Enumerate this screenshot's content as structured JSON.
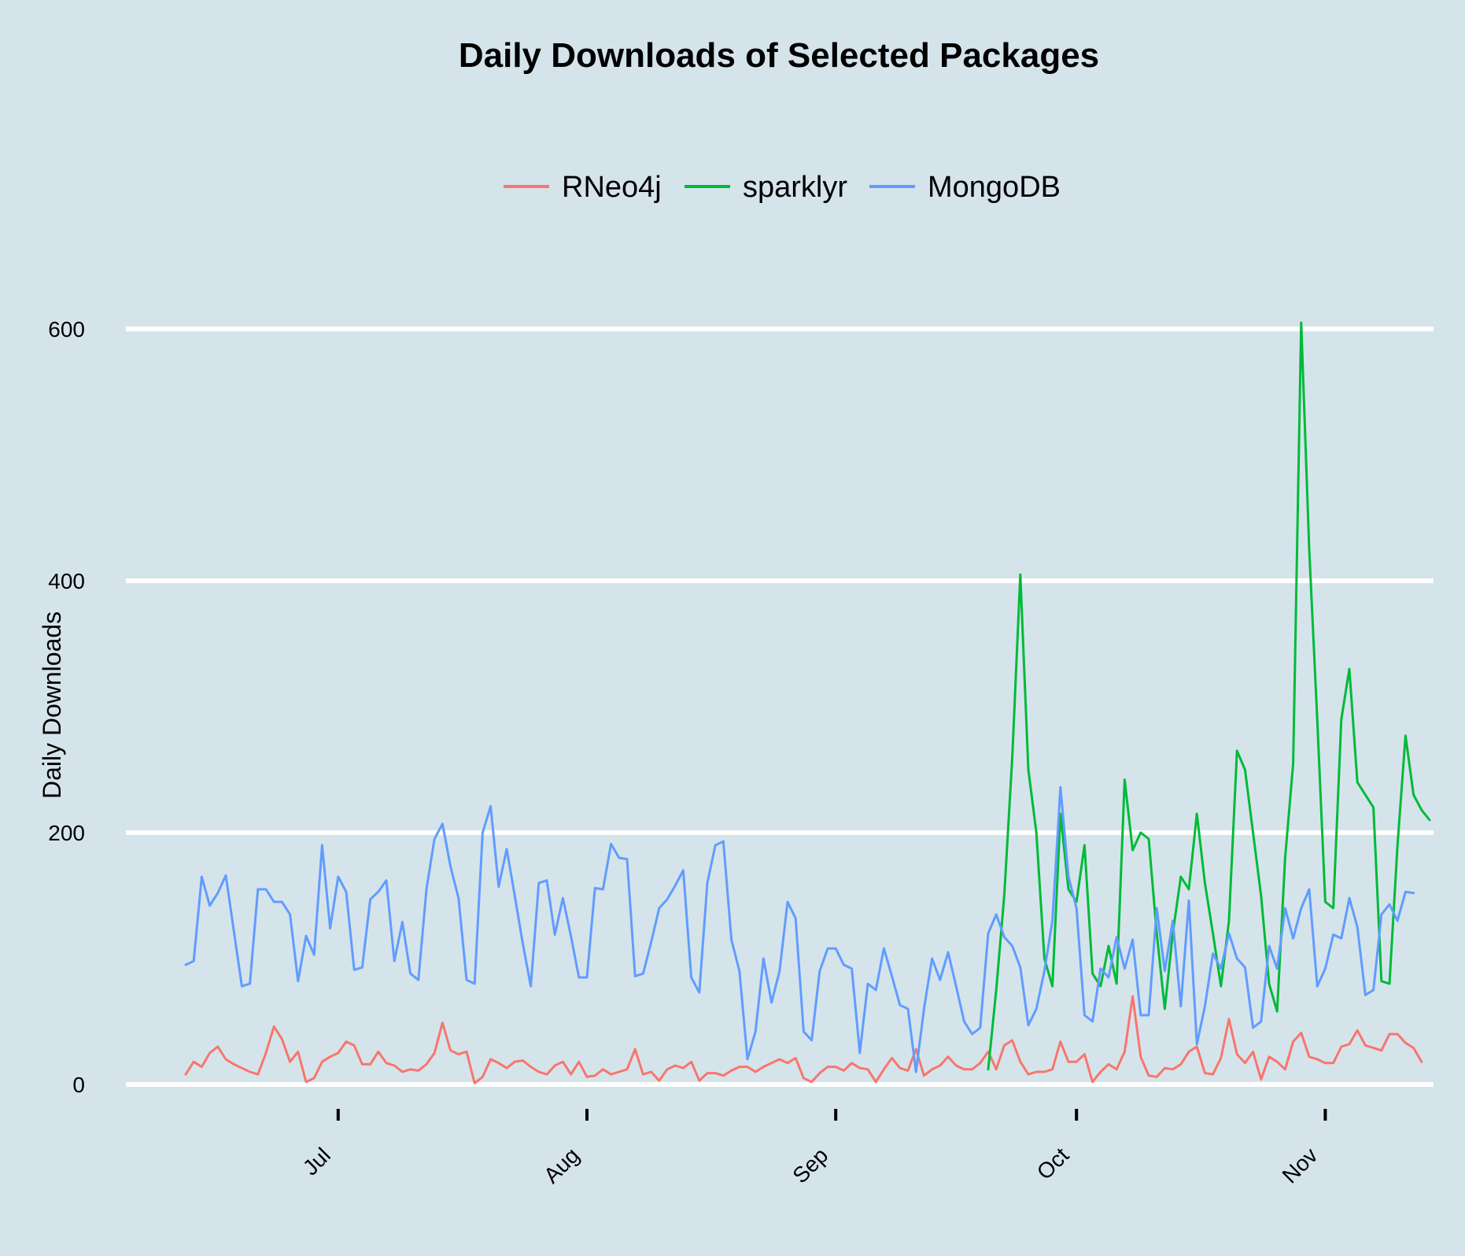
{
  "chart_data": {
    "type": "line",
    "title": "Daily Downloads of Selected  Packages",
    "xlabel": "",
    "ylabel": "Daily Downloads",
    "ylim": [
      0,
      600
    ],
    "yticks": [
      0,
      200,
      400,
      600
    ],
    "x_start_day": 0,
    "x_end_day": 156,
    "x_note": "x values are day indices; day 0 is about June 12",
    "xticks": [
      {
        "label": "Jul",
        "day": 19
      },
      {
        "label": "Aug",
        "day": 50
      },
      {
        "label": "Sep",
        "day": 81
      },
      {
        "label": "Oct",
        "day": 111
      },
      {
        "label": "Nov",
        "day": 142
      }
    ],
    "grid": true,
    "legend_position": "top",
    "series": [
      {
        "name": "RNeo4j",
        "color": "#f8766d",
        "x_start": 0,
        "values": [
          8,
          18,
          14,
          25,
          30,
          20,
          16,
          13,
          10,
          8,
          25,
          46,
          36,
          18,
          26,
          2,
          5,
          18,
          22,
          25,
          34,
          31,
          16,
          16,
          26,
          17,
          15,
          10,
          12,
          11,
          16,
          25,
          49,
          27,
          24,
          26,
          1,
          6,
          20,
          17,
          13,
          18,
          19,
          14,
          10,
          8,
          15,
          18,
          8,
          18,
          6,
          7,
          12,
          8,
          10,
          12,
          28,
          8,
          10,
          3,
          12,
          15,
          13,
          18,
          3,
          9,
          9,
          7,
          11,
          14,
          14,
          10,
          14,
          17,
          20,
          17,
          21,
          5,
          2,
          9,
          14,
          14,
          11,
          17,
          13,
          12,
          2,
          12,
          21,
          13,
          11,
          28,
          7,
          12,
          15,
          22,
          15,
          12,
          12,
          17,
          26,
          12,
          31,
          35,
          18,
          8,
          10,
          10,
          12,
          34,
          18,
          18,
          24,
          2,
          10,
          16,
          12,
          26,
          70,
          22,
          7,
          6,
          13,
          12,
          16,
          26,
          30,
          9,
          8,
          21,
          52,
          24,
          17,
          26,
          4,
          22,
          18,
          12,
          34,
          41,
          22,
          20,
          17,
          17,
          30,
          32,
          43,
          31,
          29,
          27,
          40,
          40,
          33,
          29,
          18
        ]
      },
      {
        "name": "sparklyr",
        "color": "#00ba38",
        "x_start": 100,
        "values": [
          12,
          75,
          150,
          260,
          405,
          250,
          200,
          100,
          78,
          215,
          155,
          145,
          190,
          88,
          78,
          110,
          80,
          242,
          186,
          200,
          195,
          120,
          60,
          120,
          165,
          155,
          215,
          160,
          120,
          78,
          130,
          265,
          250,
          200,
          150,
          80,
          58,
          180,
          255,
          605,
          425,
          290,
          145,
          140,
          290,
          330,
          240,
          230,
          220,
          82,
          80,
          190,
          277,
          230,
          218,
          210
        ]
      },
      {
        "name": "MongoDB",
        "color": "#619cff",
        "x_start": 0,
        "values": [
          95,
          98,
          165,
          142,
          152,
          166,
          122,
          78,
          80,
          155,
          155,
          145,
          145,
          135,
          82,
          118,
          103,
          190,
          124,
          165,
          153,
          91,
          93,
          147,
          153,
          162,
          98,
          129,
          88,
          83,
          155,
          195,
          207,
          173,
          148,
          83,
          80,
          200,
          221,
          157,
          187,
          150,
          112,
          78,
          160,
          162,
          119,
          148,
          118,
          85,
          85,
          156,
          155,
          191,
          180,
          179,
          86,
          88,
          113,
          140,
          147,
          158,
          170,
          85,
          73,
          160,
          190,
          193,
          115,
          90,
          20,
          42,
          100,
          65,
          90,
          145,
          132,
          42,
          35,
          90,
          108,
          108,
          95,
          92,
          25,
          80,
          75,
          108,
          86,
          63,
          60,
          10,
          60,
          100,
          83,
          105,
          78,
          50,
          40,
          45,
          120,
          135,
          117,
          110,
          93,
          47,
          60,
          90,
          130,
          236,
          165,
          140,
          55,
          50,
          92,
          85,
          117,
          92,
          115,
          55,
          55,
          140,
          90,
          130,
          62,
          146,
          32,
          62,
          104,
          92,
          120,
          100,
          93,
          45,
          50,
          110,
          92,
          140,
          116,
          140,
          155,
          78,
          92,
          119,
          116,
          148,
          125,
          71,
          75,
          135,
          143,
          130,
          153,
          152
        ]
      }
    ]
  }
}
